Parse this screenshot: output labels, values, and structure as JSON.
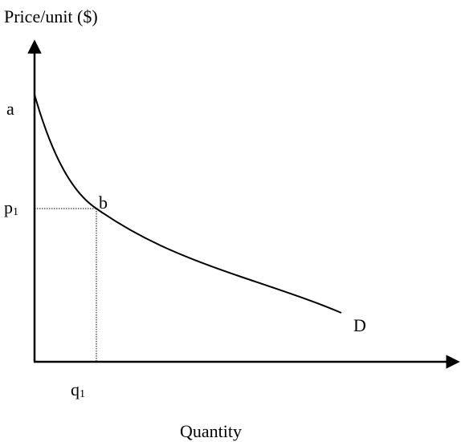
{
  "axes": {
    "y_label": "Price/unit ($)",
    "x_label": "Quantity"
  },
  "points": {
    "a": "a",
    "p": {
      "text": "p",
      "subscript": "1"
    },
    "b": "b",
    "q": {
      "text": "q",
      "subscript": "1"
    },
    "curve": "D"
  }
}
